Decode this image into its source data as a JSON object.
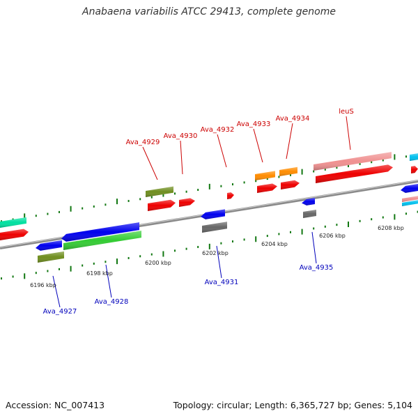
{
  "title": "Anabaena variabilis ATCC 29413, complete genome",
  "footer": {
    "accession": "Accession: NC_007413",
    "summary": "Topology: circular; Length: 6,365,727 bp; Genes: 5,104"
  },
  "colors": {
    "label_forward": "#cc0000",
    "label_reverse": "#0000bb",
    "backbone": "#888888",
    "tick": "#117711"
  },
  "scale_labels": [
    {
      "text": "6196 kbp"
    },
    {
      "text": "6198 kbp"
    },
    {
      "text": "6200 kbp"
    },
    {
      "text": "6202 kbp"
    },
    {
      "text": "6204 kbp"
    },
    {
      "text": "6206 kbp"
    },
    {
      "text": "6208 kbp"
    }
  ],
  "forward_labels": [
    "Ava_4929",
    "Ava_4930",
    "Ava_4932",
    "Ava_4933",
    "Ava_4934",
    "leuS"
  ],
  "reverse_labels": [
    "Ava_4927",
    "Ava_4928",
    "Ava_4931",
    "Ava_4935"
  ],
  "feature_colors": {
    "cds": "#ee0000",
    "trna": "#f09090",
    "olive": "#6f8e1f",
    "orange": "#ff8c00",
    "teal": "#00e0a0",
    "blue": "#0000ee",
    "green": "#33cc33",
    "gray": "#666666",
    "cyan": "#00c0ee"
  }
}
